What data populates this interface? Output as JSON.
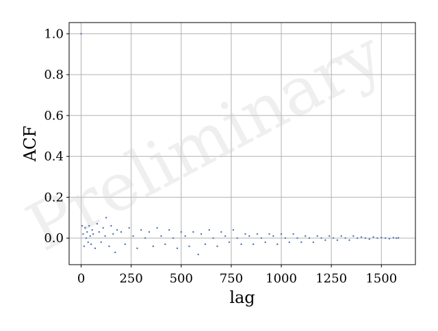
{
  "chart_data": {
    "type": "scatter",
    "title": "",
    "xlabel": "lag",
    "ylabel": "ACF",
    "xlim": [
      -60,
      1670
    ],
    "ylim": [
      -0.13,
      1.055
    ],
    "x_ticks": [
      0,
      250,
      500,
      750,
      1000,
      1250,
      1500
    ],
    "x_tick_labels": [
      "0",
      "250",
      "500",
      "750",
      "1000",
      "1250",
      "1500"
    ],
    "y_ticks": [
      0.0,
      0.2,
      0.4,
      0.6,
      0.8,
      1.0
    ],
    "y_tick_labels": [
      "0.0",
      "0.2",
      "0.4",
      "0.6",
      "0.8",
      "1.0"
    ],
    "grid": true,
    "watermark": "Preliminary",
    "marker_color": "#4c72b0",
    "series": [
      {
        "points": [
          [
            0,
            1.0
          ],
          [
            5,
            0.06
          ],
          [
            10,
            0.02
          ],
          [
            15,
            -0.04
          ],
          [
            20,
            0.05
          ],
          [
            25,
            0.0
          ],
          [
            30,
            0.03
          ],
          [
            35,
            -0.02
          ],
          [
            40,
            0.06
          ],
          [
            45,
            0.01
          ],
          [
            50,
            -0.03
          ],
          [
            55,
            0.04
          ],
          [
            60,
            0.02
          ],
          [
            70,
            -0.05
          ],
          [
            80,
            0.07
          ],
          [
            90,
            0.03
          ],
          [
            100,
            -0.02
          ],
          [
            110,
            0.05
          ],
          [
            120,
            0.01
          ],
          [
            125,
            0.1
          ],
          [
            140,
            -0.04
          ],
          [
            150,
            0.06
          ],
          [
            160,
            0.02
          ],
          [
            170,
            -0.07
          ],
          [
            180,
            0.04
          ],
          [
            200,
            0.03
          ],
          [
            220,
            -0.03
          ],
          [
            240,
            0.05
          ],
          [
            260,
            0.01
          ],
          [
            280,
            -0.05
          ],
          [
            300,
            0.04
          ],
          [
            320,
            0.0
          ],
          [
            340,
            0.03
          ],
          [
            360,
            -0.04
          ],
          [
            380,
            0.05
          ],
          [
            400,
            0.01
          ],
          [
            420,
            -0.03
          ],
          [
            440,
            0.04
          ],
          [
            460,
            0.0
          ],
          [
            480,
            -0.05
          ],
          [
            500,
            0.03
          ],
          [
            520,
            0.01
          ],
          [
            540,
            -0.04
          ],
          [
            560,
            0.03
          ],
          [
            585,
            -0.08
          ],
          [
            600,
            0.02
          ],
          [
            620,
            -0.03
          ],
          [
            640,
            0.04
          ],
          [
            660,
            0.0
          ],
          [
            680,
            -0.04
          ],
          [
            700,
            0.03
          ],
          [
            720,
            0.01
          ],
          [
            740,
            -0.02
          ],
          [
            760,
            0.04
          ],
          [
            780,
            0.0
          ],
          [
            800,
            -0.03
          ],
          [
            820,
            0.02
          ],
          [
            840,
            0.01
          ],
          [
            860,
            -0.03
          ],
          [
            880,
            0.02
          ],
          [
            900,
            0.0
          ],
          [
            920,
            -0.02
          ],
          [
            940,
            0.02
          ],
          [
            960,
            0.01
          ],
          [
            980,
            -0.03
          ],
          [
            1000,
            0.02
          ],
          [
            1020,
            0.0
          ],
          [
            1040,
            -0.02
          ],
          [
            1060,
            0.02
          ],
          [
            1080,
            0.0
          ],
          [
            1100,
            -0.02
          ],
          [
            1120,
            0.01
          ],
          [
            1140,
            0.0
          ],
          [
            1160,
            -0.02
          ],
          [
            1180,
            0.01
          ],
          [
            1200,
            0.0
          ],
          [
            1220,
            -0.01
          ],
          [
            1240,
            0.01
          ],
          [
            1260,
            0.0
          ],
          [
            1280,
            -0.01
          ],
          [
            1300,
            0.01
          ],
          [
            1320,
            0.0
          ],
          [
            1340,
            -0.01
          ],
          [
            1360,
            0.01
          ],
          [
            1380,
            0.0
          ],
          [
            1400,
            0.005
          ],
          [
            1420,
            0.0
          ],
          [
            1440,
            -0.005
          ],
          [
            1460,
            0.005
          ],
          [
            1480,
            0.0
          ],
          [
            1500,
            0.003
          ],
          [
            1520,
            0.0
          ],
          [
            1540,
            -0.003
          ],
          [
            1560,
            0.002
          ],
          [
            1575,
            0.0
          ],
          [
            1585,
            0.001
          ]
        ]
      }
    ]
  }
}
